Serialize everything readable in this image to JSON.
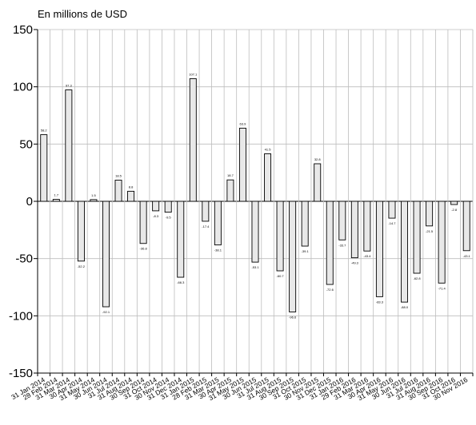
{
  "chart_data": {
    "type": "bar",
    "unit_label": "En millions de USD",
    "ylim": [
      -150,
      150
    ],
    "y_ticks": [
      150,
      100,
      50,
      0,
      -50,
      -100,
      -150
    ],
    "y_tick_labels": [
      "150",
      "100",
      "50",
      "0",
      "-50",
      "-100",
      "-150"
    ],
    "grid": true,
    "bar_fill": "#e8e8e8",
    "bar_stroke": "#000000",
    "categories": [
      "31 Jan 2014",
      "28 Feb 2014",
      "31 Mar 2014",
      "30 Apr 2014",
      "31 May 2014",
      "30 Jun 2014",
      "31 Jul 2014",
      "31 Aug 2014",
      "30 Sep 2014",
      "31 Oct 2014",
      "30 Nov 2014",
      "31 Dec 2014",
      "31 Jan 2015",
      "28 Feb 2015",
      "31 Mar 2015",
      "30 Apr 2015",
      "31 May 2015",
      "30 Jun 2015",
      "31 Jul 2015",
      "31 Aug 2015",
      "30 Sep 2015",
      "31 Oct 2015",
      "30 Nov 2015",
      "31 Dec 2015",
      "31 Jan 2016",
      "29 Feb 2016",
      "31 Mar 2016",
      "30 Apr 2016",
      "31 May 2016",
      "30 Jun 2016",
      "31 Jul 2016",
      "31 Aug 2016",
      "30 Sep 2016",
      "31 Oct 2016",
      "30 Nov 2016"
    ],
    "values": [
      58.2,
      1.7,
      97.3,
      -52.2,
      1.5,
      -92.1,
      18.5,
      8.8,
      -36.8,
      -8.3,
      -9.5,
      -66.3,
      107.1,
      -17.4,
      -38.1,
      18.7,
      63.9,
      -53.1,
      41.5,
      -60.7,
      -96.6,
      -39.1,
      32.8,
      -72.6,
      -33.7,
      -49.3,
      -43.4,
      -83.3,
      -14.7,
      -88.0,
      -62.8,
      -21.5,
      -71.4,
      -2.8,
      -43.1
    ],
    "value_labels": [
      "58.2",
      "1.7",
      "97.3",
      "-52.2",
      "1.5",
      "-92.1",
      "18.5",
      "8.8",
      "-36.8",
      "-8.3",
      "-9.5",
      "-66.3",
      "107.1",
      "-17.4",
      "-38.1",
      "18.7",
      "63.9",
      "-53.1",
      "41.5",
      "-60.7",
      "-96.6",
      "-39.1",
      "32.8",
      "-72.6",
      "-33.7",
      "-49.3",
      "-43.4",
      "-83.3",
      "-14.7",
      "-88.0",
      "-62.8",
      "-21.5",
      "-71.4",
      "-2.8",
      "-43.1"
    ]
  }
}
